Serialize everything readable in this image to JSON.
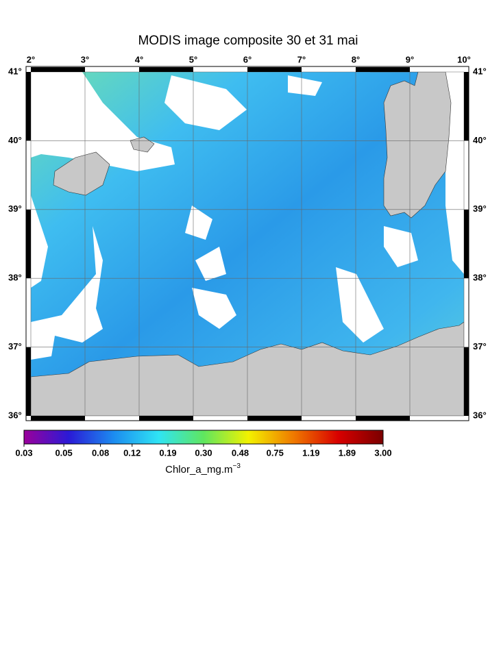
{
  "title": "MODIS image composite 30 et 31 mai",
  "map": {
    "lon_ticks": [
      {
        "value": 2,
        "label": "2°"
      },
      {
        "value": 3,
        "label": "3°"
      },
      {
        "value": 4,
        "label": "4°"
      },
      {
        "value": 5,
        "label": "5°"
      },
      {
        "value": 6,
        "label": "6°"
      },
      {
        "value": 7,
        "label": "7°"
      },
      {
        "value": 8,
        "label": "8°"
      },
      {
        "value": 9,
        "label": "9°"
      },
      {
        "value": 10,
        "label": "10°"
      }
    ],
    "lat_ticks": [
      {
        "value": 41,
        "label": "41°"
      },
      {
        "value": 40,
        "label": "40°"
      },
      {
        "value": 39,
        "label": "39°"
      },
      {
        "value": 38,
        "label": "38°"
      },
      {
        "value": 37,
        "label": "37°"
      },
      {
        "value": 36,
        "label": "36°"
      }
    ],
    "lon_range": [
      2,
      10
    ],
    "lat_range": [
      36,
      41
    ]
  },
  "colorbar": {
    "scale": "log",
    "range": [
      0.03,
      3
    ],
    "colors": [
      "#9b009b",
      "#2a1ad6",
      "#1c8cf0",
      "#2fe4f4",
      "#5fe65f",
      "#f2f200",
      "#f07a00",
      "#d80000",
      "#7a0000"
    ],
    "ticks": [
      {
        "value": 0.03,
        "label": "0.03"
      },
      {
        "value": 0.05,
        "label": "0.05"
      },
      {
        "value": 0.08,
        "label": "0.08"
      },
      {
        "value": 0.12,
        "label": "0.12"
      },
      {
        "value": 0.19,
        "label": "0.19"
      },
      {
        "value": 0.3,
        "label": "0.30"
      },
      {
        "value": 0.48,
        "label": "0.48"
      },
      {
        "value": 0.75,
        "label": "0.75"
      },
      {
        "value": 1.19,
        "label": "1.19"
      },
      {
        "value": 1.89,
        "label": "1.89"
      },
      {
        "value": 3,
        "label": "3.00"
      }
    ],
    "units": "Chlor_a_mg.m",
    "units_exponent": "−3"
  }
}
